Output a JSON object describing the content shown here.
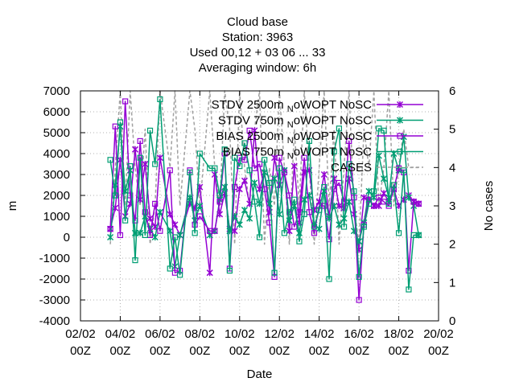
{
  "chart_data": {
    "type": "line",
    "title_lines": [
      "Cloud base",
      "Station:      3963",
      "Used  00,12  + 03 06 ... 33",
      "Averaging window:  6h"
    ],
    "xlabel": "Date",
    "ylabel": "m",
    "y2label": "No cases",
    "x_ticks": [
      {
        "line1": "02/02",
        "line2": "00Z"
      },
      {
        "line1": "04/02",
        "line2": "00Z"
      },
      {
        "line1": "06/02",
        "line2": "00Z"
      },
      {
        "line1": "08/02",
        "line2": "00Z"
      },
      {
        "line1": "10/02",
        "line2": "00Z"
      },
      {
        "line1": "12/02",
        "line2": "00Z"
      },
      {
        "line1": "14/02",
        "line2": "00Z"
      },
      {
        "line1": "16/02",
        "line2": "00Z"
      },
      {
        "line1": "18/02",
        "line2": "00Z"
      },
      {
        "line1": "20/02",
        "line2": "00Z"
      }
    ],
    "xlim": [
      0,
      18
    ],
    "ylim": [
      -4000,
      7000
    ],
    "y_ticks": [
      -4000,
      -3000,
      -2000,
      -1000,
      0,
      1000,
      2000,
      3000,
      4000,
      5000,
      6000,
      7000
    ],
    "y2lim": [
      0,
      6
    ],
    "y2_ticks": [
      0,
      1,
      2,
      3,
      4,
      5,
      6
    ],
    "grid": true,
    "legend_position": "top-right",
    "series": [
      {
        "name": "STDV 2500m NoWOPT NoSC",
        "legend_label": "STDV 2500m",
        "legend_sub": "N",
        "legend_tail": "oWOPT NoSC",
        "color": "#9400d3",
        "marker": "cross",
        "axis": "y1",
        "x": [
          1.5,
          1.75,
          2.0,
          2.25,
          2.5,
          2.75,
          3.0,
          3.25,
          3.5,
          3.75,
          4.0,
          4.5,
          4.75,
          5.0,
          5.5,
          5.75,
          6.0,
          6.5,
          6.75,
          7.0,
          7.25,
          7.5,
          7.75,
          8.0,
          8.25,
          8.5,
          8.75,
          9.0,
          9.25,
          9.5,
          9.75,
          10.0,
          10.25,
          10.5,
          10.75,
          11.0,
          11.25,
          11.5,
          11.75,
          12.0,
          12.25,
          12.5,
          12.75,
          13.0,
          13.25,
          13.5,
          13.75,
          14.0,
          14.25,
          14.5,
          14.75,
          15.0,
          15.25,
          15.5,
          15.75,
          16.0,
          16.25,
          16.5,
          16.75,
          17.0
        ],
        "values": [
          400,
          1400,
          3700,
          1000,
          1600,
          4200,
          1800,
          3500,
          900,
          500,
          3800,
          1100,
          600,
          100,
          1600,
          1400,
          2400,
          -1700,
          3000,
          1100,
          2100,
          400,
          300,
          2300,
          2700,
          1600,
          5100,
          2300,
          3100,
          1200,
          3800,
          2500,
          3200,
          300,
          3400,
          700,
          3100,
          3200,
          1300,
          1700,
          3000,
          1000,
          2800,
          1500,
          1400,
          2800,
          1100,
          -600,
          1900,
          1800,
          1500,
          1500,
          2100,
          1700,
          2300,
          1500,
          1800,
          2000,
          1700,
          1600
        ]
      },
      {
        "name": "STDV 750m NoWOPT NoSC",
        "legend_label": "STDV 750m",
        "legend_sub": "N",
        "legend_tail": "oWOPT NoSC",
        "color": "#009e73",
        "marker": "cross",
        "axis": "y1",
        "x": [
          1.5,
          1.75,
          2.0,
          2.25,
          2.5,
          2.75,
          3.0,
          3.25,
          3.5,
          3.75,
          4.0,
          4.5,
          4.75,
          5.0,
          5.5,
          5.75,
          6.0,
          6.5,
          6.75,
          7.0,
          7.25,
          7.5,
          7.75,
          8.0,
          8.25,
          8.5,
          8.75,
          9.0,
          9.25,
          9.5,
          9.75,
          10.0,
          10.25,
          10.5,
          10.75,
          11.0,
          11.25,
          11.5,
          11.75,
          12.0,
          12.25,
          12.5,
          12.75,
          13.0,
          13.25,
          13.5,
          13.75,
          14.0,
          14.25,
          14.5,
          14.75,
          15.0,
          15.25,
          15.5,
          15.75,
          16.0,
          16.25,
          16.5,
          16.75,
          17.0
        ],
        "values": [
          0,
          2500,
          5300,
          2200,
          3200,
          200,
          200,
          1000,
          400,
          0,
          1200,
          300,
          -1400,
          100,
          1900,
          800,
          1500,
          100,
          300,
          1800,
          2400,
          300,
          1000,
          600,
          1300,
          900,
          2600,
          1600,
          3100,
          1600,
          2800,
          1100,
          3200,
          800,
          1500,
          200,
          1800,
          2000,
          600,
          400,
          2200,
          900,
          1500,
          600,
          900,
          1700,
          300,
          -200,
          700,
          2200,
          1900,
          3900,
          2800,
          1900,
          4000,
          3200,
          4800,
          1900,
          1500,
          100
        ]
      },
      {
        "name": "BIAS 2500m NoWOPT NoSC",
        "legend_label": "BIAS 2500m",
        "legend_sub": "N",
        "legend_tail": "oWOPT NoSC",
        "color": "#9400d3",
        "marker": "square",
        "axis": "y1",
        "x": [
          1.5,
          1.75,
          2.0,
          2.25,
          2.5,
          2.75,
          3.0,
          3.25,
          3.5,
          3.75,
          4.0,
          4.5,
          4.75,
          5.0,
          5.5,
          5.75,
          6.0,
          6.5,
          6.75,
          7.0,
          7.25,
          7.5,
          7.75,
          8.0,
          8.25,
          8.5,
          8.75,
          9.0,
          9.25,
          9.5,
          9.75,
          10.0,
          10.25,
          10.5,
          10.75,
          11.0,
          11.25,
          11.5,
          11.75,
          12.0,
          12.25,
          12.5,
          12.75,
          13.0,
          13.25,
          13.5,
          13.75,
          14.0,
          14.25,
          14.5,
          14.75,
          15.0,
          15.25,
          15.5,
          15.75,
          16.0,
          16.25,
          16.5,
          16.75,
          17.0
        ],
        "values": [
          400,
          5300,
          100,
          6500,
          2000,
          800,
          4600,
          1200,
          100,
          1600,
          300,
          3200,
          -1700,
          -1600,
          3200,
          600,
          1000,
          300,
          300,
          1700,
          4000,
          -1500,
          2400,
          3800,
          3700,
          5100,
          3300,
          3500,
          2300,
          700,
          -1900,
          3800,
          3100,
          2000,
          500,
          1200,
          3800,
          1200,
          200,
          1500,
          1500,
          -100,
          2300,
          2600,
          1700,
          4600,
          1900,
          -3000,
          600,
          1800,
          1500,
          1900,
          1700,
          1500,
          2300,
          3300,
          3100,
          -1600,
          1700,
          1600
        ]
      },
      {
        "name": "BIAS 750m NoWOPT NoSC",
        "legend_label": "BIAS 750m",
        "legend_sub": "N",
        "legend_tail": "oWOPT NoSC",
        "color": "#009e73",
        "marker": "square",
        "axis": "y1",
        "x": [
          1.5,
          1.75,
          2.0,
          2.25,
          2.5,
          2.75,
          3.0,
          3.25,
          3.5,
          3.75,
          4.0,
          4.5,
          4.75,
          5.0,
          5.5,
          5.75,
          6.0,
          6.5,
          6.75,
          7.0,
          7.25,
          7.5,
          7.75,
          8.0,
          8.25,
          8.5,
          8.75,
          9.0,
          9.25,
          9.5,
          9.75,
          10.0,
          10.25,
          10.5,
          10.75,
          11.0,
          11.25,
          11.5,
          11.75,
          12.0,
          12.25,
          12.5,
          12.75,
          13.0,
          13.25,
          13.5,
          13.75,
          14.0,
          14.25,
          14.5,
          14.75,
          15.0,
          15.25,
          15.5,
          15.75,
          16.0,
          16.25,
          16.5,
          16.75,
          17.0
        ],
        "values": [
          3700,
          2000,
          5500,
          800,
          3400,
          -1100,
          3800,
          100,
          5100,
          3500,
          6600,
          -1500,
          0,
          -1800,
          3100,
          200,
          4000,
          3300,
          3300,
          2000,
          4200,
          -1600,
          3800,
          3400,
          4500,
          3200,
          1700,
          0,
          3700,
          2600,
          -1700,
          3300,
          200,
          1200,
          1800,
          -200,
          1100,
          4600,
          500,
          1300,
          2400,
          -2000,
          4100,
          5200,
          500,
          3500,
          2200,
          -1900,
          500,
          1600,
          2200,
          5200,
          5100,
          1600,
          2500,
          200,
          3200,
          -2500,
          100,
          100
        ]
      },
      {
        "name": "CASES",
        "legend_label": "CASES",
        "color": "#a0a0a0",
        "dashed": true,
        "axis": "y2",
        "x": [
          1.5,
          1.75,
          2.0,
          2.25,
          2.5,
          2.75,
          3.0,
          3.25,
          3.5,
          3.75,
          4.0,
          4.5,
          4.75,
          5.0,
          5.5,
          5.75,
          6.0,
          6.5,
          6.75,
          7.0,
          7.25,
          7.5,
          7.75,
          8.0,
          8.25,
          8.5,
          8.75,
          9.0,
          9.25,
          9.5,
          9.75,
          10.0,
          10.25,
          10.5,
          10.75,
          11.0,
          11.25,
          11.5,
          11.75,
          12.0,
          12.25,
          12.5,
          12.75,
          13.0,
          13.25,
          13.5,
          13.75,
          14.0,
          14.25,
          14.5,
          14.75,
          15.0,
          15.25,
          15.5,
          15.75,
          16.0,
          16.25,
          16.5,
          16.75,
          17.0
        ],
        "values": [
          2,
          4,
          6,
          3,
          6,
          4,
          3,
          5,
          2,
          3,
          6,
          4,
          6,
          3,
          6,
          5,
          3,
          6,
          4,
          3,
          6,
          5,
          2,
          6,
          4,
          3,
          5,
          6,
          2,
          4,
          3,
          6,
          4,
          2,
          5,
          3,
          6,
          4,
          2,
          4,
          6,
          3,
          5,
          2,
          4,
          6,
          3,
          2,
          5,
          4,
          6,
          3,
          4,
          6,
          3,
          4,
          5,
          4,
          4,
          4
        ]
      }
    ]
  }
}
